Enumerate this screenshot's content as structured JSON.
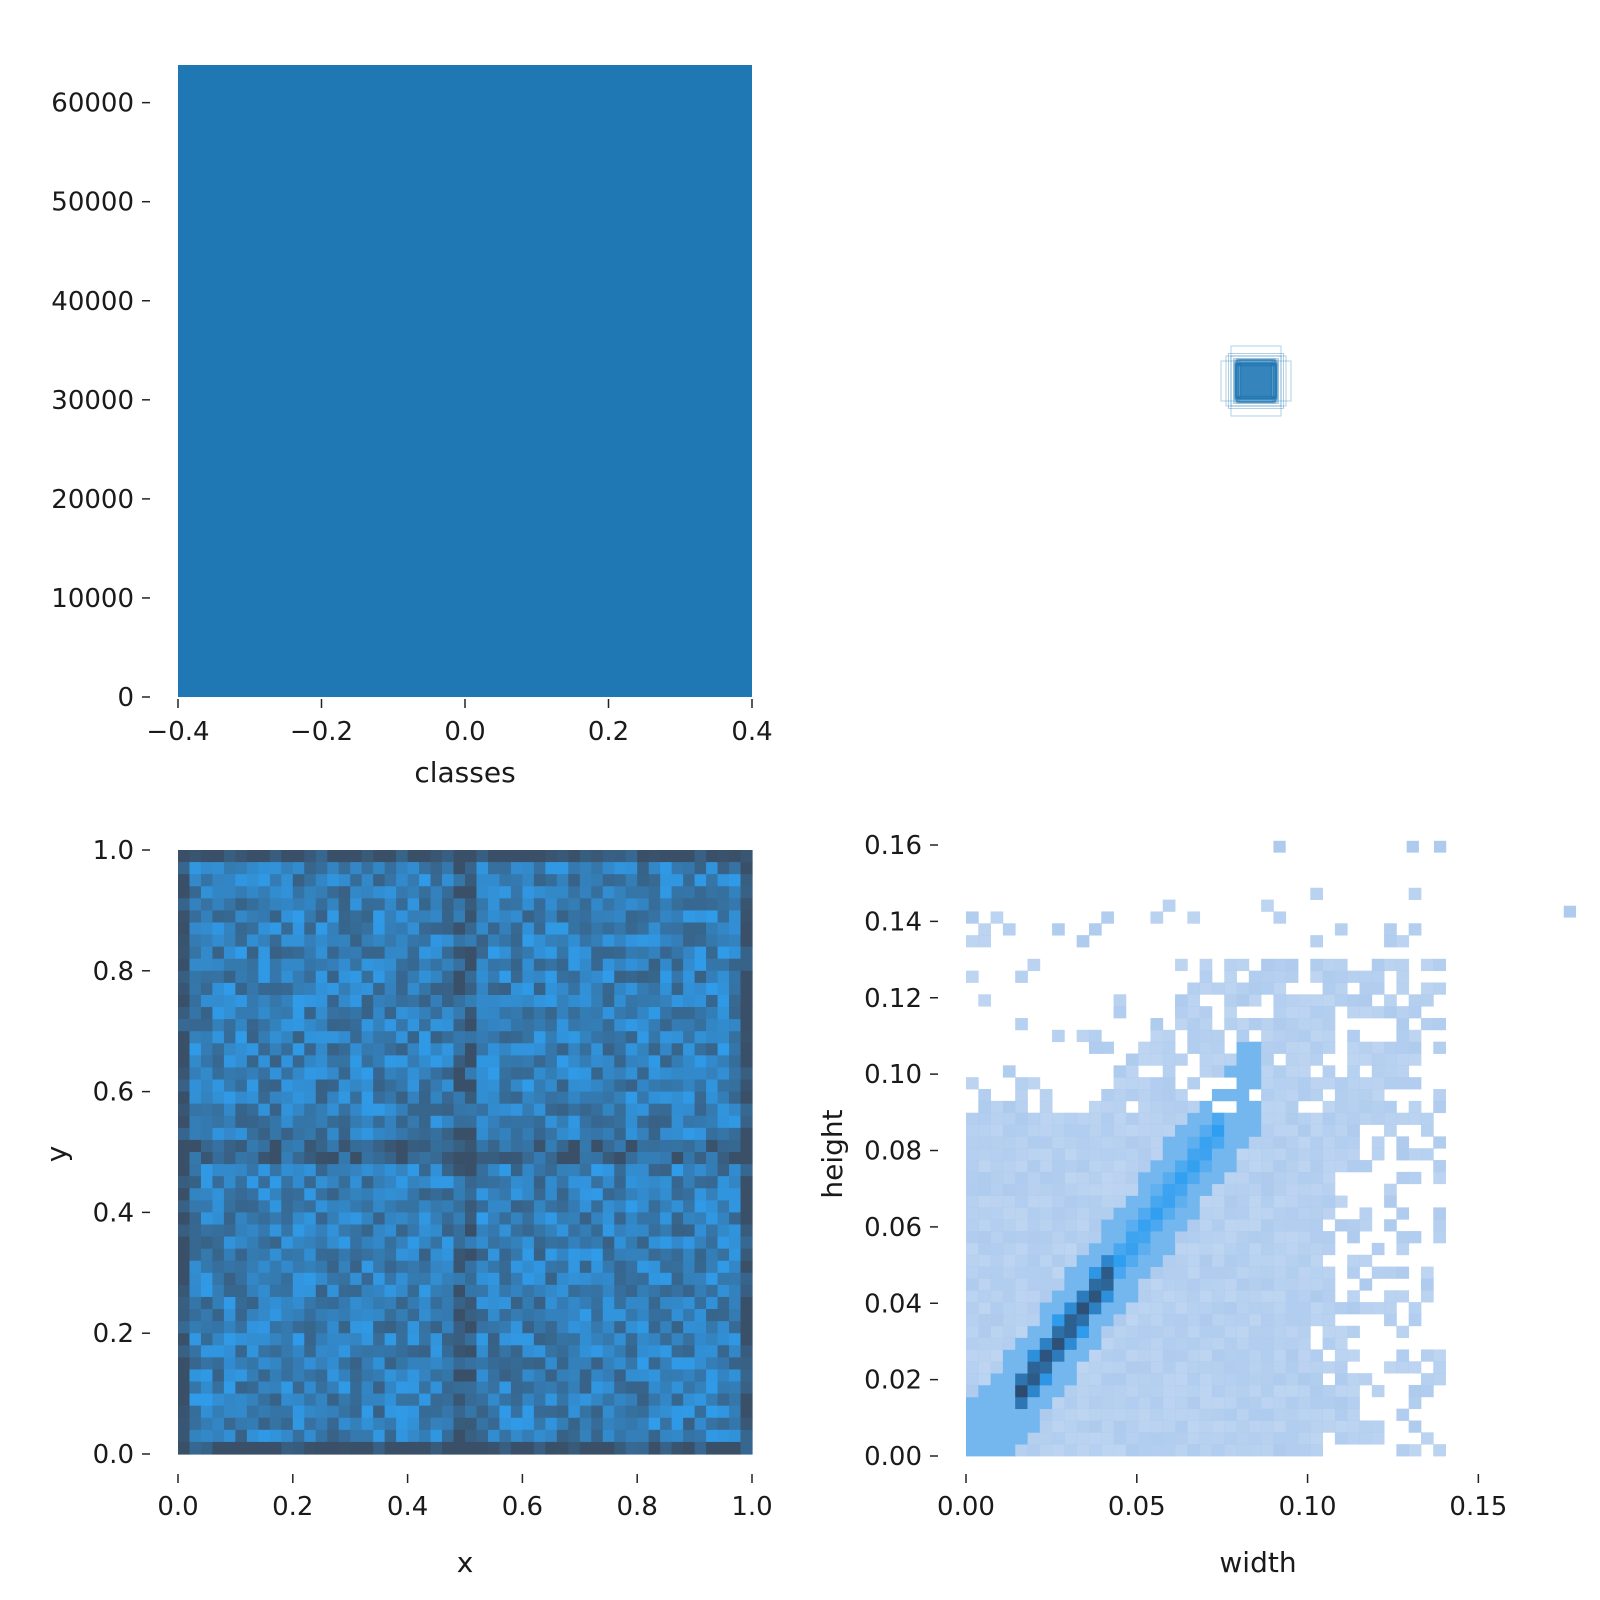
{
  "chart_data": [
    {
      "id": "classes_hist",
      "type": "bar",
      "categories": [
        "0"
      ],
      "values": [
        63800
      ],
      "bar_range": [
        -0.4,
        0.4
      ],
      "xlim": [
        -0.4,
        0.4
      ],
      "ylim": [
        0,
        63800
      ],
      "xticks": [
        -0.4,
        -0.2,
        0.0,
        0.2,
        0.4
      ],
      "xtick_labels": [
        "−0.4",
        "−0.2",
        "0.0",
        "0.2",
        "0.4"
      ],
      "yticks": [
        0,
        10000,
        20000,
        30000,
        40000,
        50000,
        60000
      ],
      "ytick_labels": [
        "0",
        "10000",
        "20000",
        "30000",
        "40000",
        "50000",
        "60000"
      ],
      "xlabel": "classes",
      "ylabel": "",
      "color": "#1f77b4",
      "grid": false
    },
    {
      "id": "box_overlay",
      "type": "scatter",
      "description_free": true,
      "center": [
        0.5,
        0.5
      ],
      "box_sizes": [
        [
          0.04,
          0.04
        ],
        [
          0.05,
          0.05
        ],
        [
          0.06,
          0.05
        ],
        [
          0.05,
          0.07
        ],
        [
          0.07,
          0.04
        ],
        [
          0.035,
          0.035
        ],
        [
          0.045,
          0.045
        ],
        [
          0.055,
          0.055
        ]
      ],
      "color": "#1f77b4",
      "axes_visible": false
    },
    {
      "id": "xy_hist2d",
      "type": "heatmap",
      "xlim": [
        0,
        1
      ],
      "ylim": [
        0,
        1
      ],
      "bins": 50,
      "xticks": [
        0,
        0.2,
        0.4,
        0.6,
        0.8,
        1.0
      ],
      "xtick_labels": [
        "0.0",
        "0.2",
        "0.4",
        "0.6",
        "0.8",
        "1.0"
      ],
      "yticks": [
        0,
        0.2,
        0.4,
        0.6,
        0.8,
        1.0
      ],
      "ytick_labels": [
        "0.0",
        "0.2",
        "0.4",
        "0.6",
        "0.8",
        "1.0"
      ],
      "xlabel": "x",
      "ylabel": "y",
      "color_low": "#3a5068",
      "color_high": "#2fa4f8",
      "grid": false
    },
    {
      "id": "wh_hist2d",
      "type": "heatmap",
      "xlim": [
        0,
        0.178
      ],
      "ylim": [
        0,
        0.16
      ],
      "bin_w": 0.0036,
      "bin_h": 0.0031,
      "xticks": [
        0,
        0.05,
        0.1,
        0.15
      ],
      "xtick_labels": [
        "0.00",
        "0.05",
        "0.10",
        "0.15"
      ],
      "yticks": [
        0,
        0.02,
        0.04,
        0.06,
        0.08,
        0.1,
        0.12,
        0.14,
        0.16
      ],
      "ytick_labels": [
        "0.00",
        "0.02",
        "0.04",
        "0.06",
        "0.08",
        "0.10",
        "0.12",
        "0.14",
        "0.16"
      ],
      "xlabel": "width",
      "ylabel": "height",
      "color_light": "#aecbee",
      "color_mid": "#2e9ef0",
      "color_dark": "#2c4a6e",
      "grid": false
    }
  ]
}
